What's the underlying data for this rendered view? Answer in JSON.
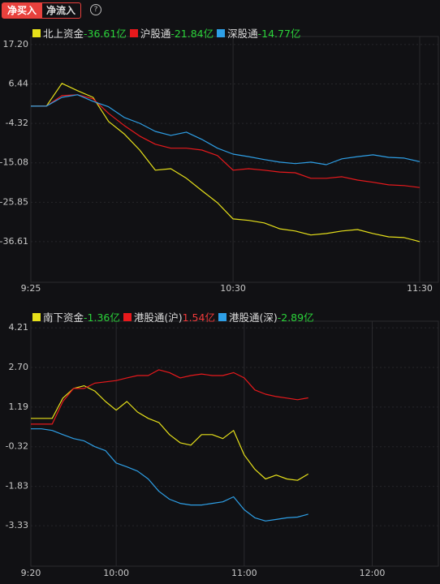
{
  "header": {
    "tabs": [
      "净买入",
      "净流入"
    ],
    "help": "?"
  },
  "chart_data": [
    {
      "type": "line",
      "x": [
        "9:25",
        "9:30",
        "9:35",
        "9:40",
        "9:45",
        "9:50",
        "9:55",
        "10:00",
        "10:05",
        "10:10",
        "10:15",
        "10:20",
        "10:25",
        "10:30",
        "10:35",
        "10:40",
        "10:45",
        "10:50",
        "10:55",
        "11:00",
        "11:05",
        "11:10",
        "11:15",
        "11:20",
        "11:25",
        "11:30"
      ],
      "xlim": [
        "9:25",
        "11:36"
      ],
      "xticks": [
        "9:25",
        "10:30",
        "11:30"
      ],
      "ylim": [
        -47.7,
        19.4
      ],
      "yticks": [
        {
          "value": 17.2,
          "label": "17.20"
        },
        6.44,
        -4.32,
        -15.08,
        -25.85,
        -36.61
      ],
      "grid": true,
      "series": [
        {
          "name": "北上资金",
          "color": "#e6e01a",
          "total": "-36.61亿",
          "total_color": "#2bd33a",
          "values": [
            0.37,
            0.4,
            6.6,
            4.6,
            2.8,
            -3.8,
            -7.2,
            -11.6,
            -17.1,
            -16.7,
            -19.3,
            -22.7,
            -26.0,
            -30.4,
            -30.8,
            -31.5,
            -33.1,
            -33.7,
            -34.8,
            -34.4,
            -33.7,
            -33.3,
            -34.4,
            -35.3,
            -35.5,
            -36.61
          ]
        },
        {
          "name": "沪股通",
          "color": "#e8191c",
          "total": "-21.84亿",
          "total_color": "#2bd33a",
          "values": [
            0.37,
            0.4,
            3.25,
            3.5,
            2.4,
            -1.6,
            -4.9,
            -7.8,
            -10.0,
            -11.1,
            -11.1,
            -11.6,
            -13.1,
            -17.1,
            -16.7,
            -17.1,
            -17.6,
            -17.8,
            -19.3,
            -19.3,
            -18.9,
            -19.8,
            -20.4,
            -21.1,
            -21.3,
            -21.84
          ]
        },
        {
          "name": "深股通",
          "color": "#2e9fe6",
          "total": "-14.77亿",
          "total_color": "#2bd33a",
          "values": [
            0.37,
            0.4,
            2.8,
            3.5,
            1.7,
            0.2,
            -2.7,
            -4.3,
            -6.5,
            -7.6,
            -6.7,
            -8.7,
            -11.1,
            -12.7,
            -13.4,
            -14.2,
            -14.9,
            -15.3,
            -14.9,
            -15.6,
            -14.0,
            -13.4,
            -12.9,
            -13.6,
            -13.8,
            -14.77
          ]
        }
      ]
    },
    {
      "type": "line",
      "x": [
        "9:20",
        "9:25",
        "9:30",
        "9:35",
        "9:40",
        "9:45",
        "9:50",
        "9:55",
        "10:00",
        "10:05",
        "10:10",
        "10:15",
        "10:20",
        "10:25",
        "10:30",
        "10:35",
        "10:40",
        "10:45",
        "10:50",
        "10:55",
        "11:00",
        "11:05",
        "11:10",
        "11:15",
        "11:20",
        "11:25",
        "11:30"
      ],
      "xlim": [
        "9:20",
        "12:31"
      ],
      "xticks": [
        "9:20",
        "10:00",
        "11:00",
        "12:00"
      ],
      "ylim": [
        -4.87,
        4.46
      ],
      "yticks": [
        4.21,
        {
          "value": 2.7,
          "label": "2.70"
        },
        1.19,
        -0.32,
        -1.83,
        -3.33
      ],
      "grid": true,
      "series": [
        {
          "name": "南下资金",
          "color": "#e6e01a",
          "total": "-1.36亿",
          "total_color": "#2bd33a",
          "values": [
            0.76,
            0.76,
            0.76,
            1.53,
            1.9,
            2.0,
            1.8,
            1.4,
            1.07,
            1.4,
            1.0,
            0.76,
            0.6,
            0.14,
            -0.17,
            -0.26,
            0.14,
            0.14,
            -0.01,
            0.3,
            -0.63,
            -1.18,
            -1.55,
            -1.4,
            -1.55,
            -1.6,
            -1.36
          ]
        },
        {
          "name": "港股通(沪)",
          "color": "#e8191c",
          "total": "1.54亿",
          "total_color": "#f03a3a",
          "values": [
            0.54,
            0.54,
            0.54,
            1.4,
            1.9,
            1.9,
            2.1,
            2.15,
            2.2,
            2.3,
            2.39,
            2.39,
            2.61,
            2.5,
            2.3,
            2.39,
            2.45,
            2.39,
            2.39,
            2.5,
            2.3,
            1.84,
            1.68,
            1.59,
            1.53,
            1.47,
            1.54
          ]
        },
        {
          "name": "港股通(深)",
          "color": "#2e9fe6",
          "total": "-2.89亿",
          "total_color": "#2bd33a",
          "values": [
            0.36,
            0.36,
            0.3,
            0.14,
            -0.01,
            -0.1,
            -0.32,
            -0.47,
            -0.94,
            -1.09,
            -1.25,
            -1.55,
            -2.02,
            -2.32,
            -2.48,
            -2.54,
            -2.54,
            -2.48,
            -2.42,
            -2.23,
            -2.72,
            -3.03,
            -3.15,
            -3.09,
            -3.03,
            -3.0,
            -2.89
          ]
        }
      ]
    }
  ]
}
